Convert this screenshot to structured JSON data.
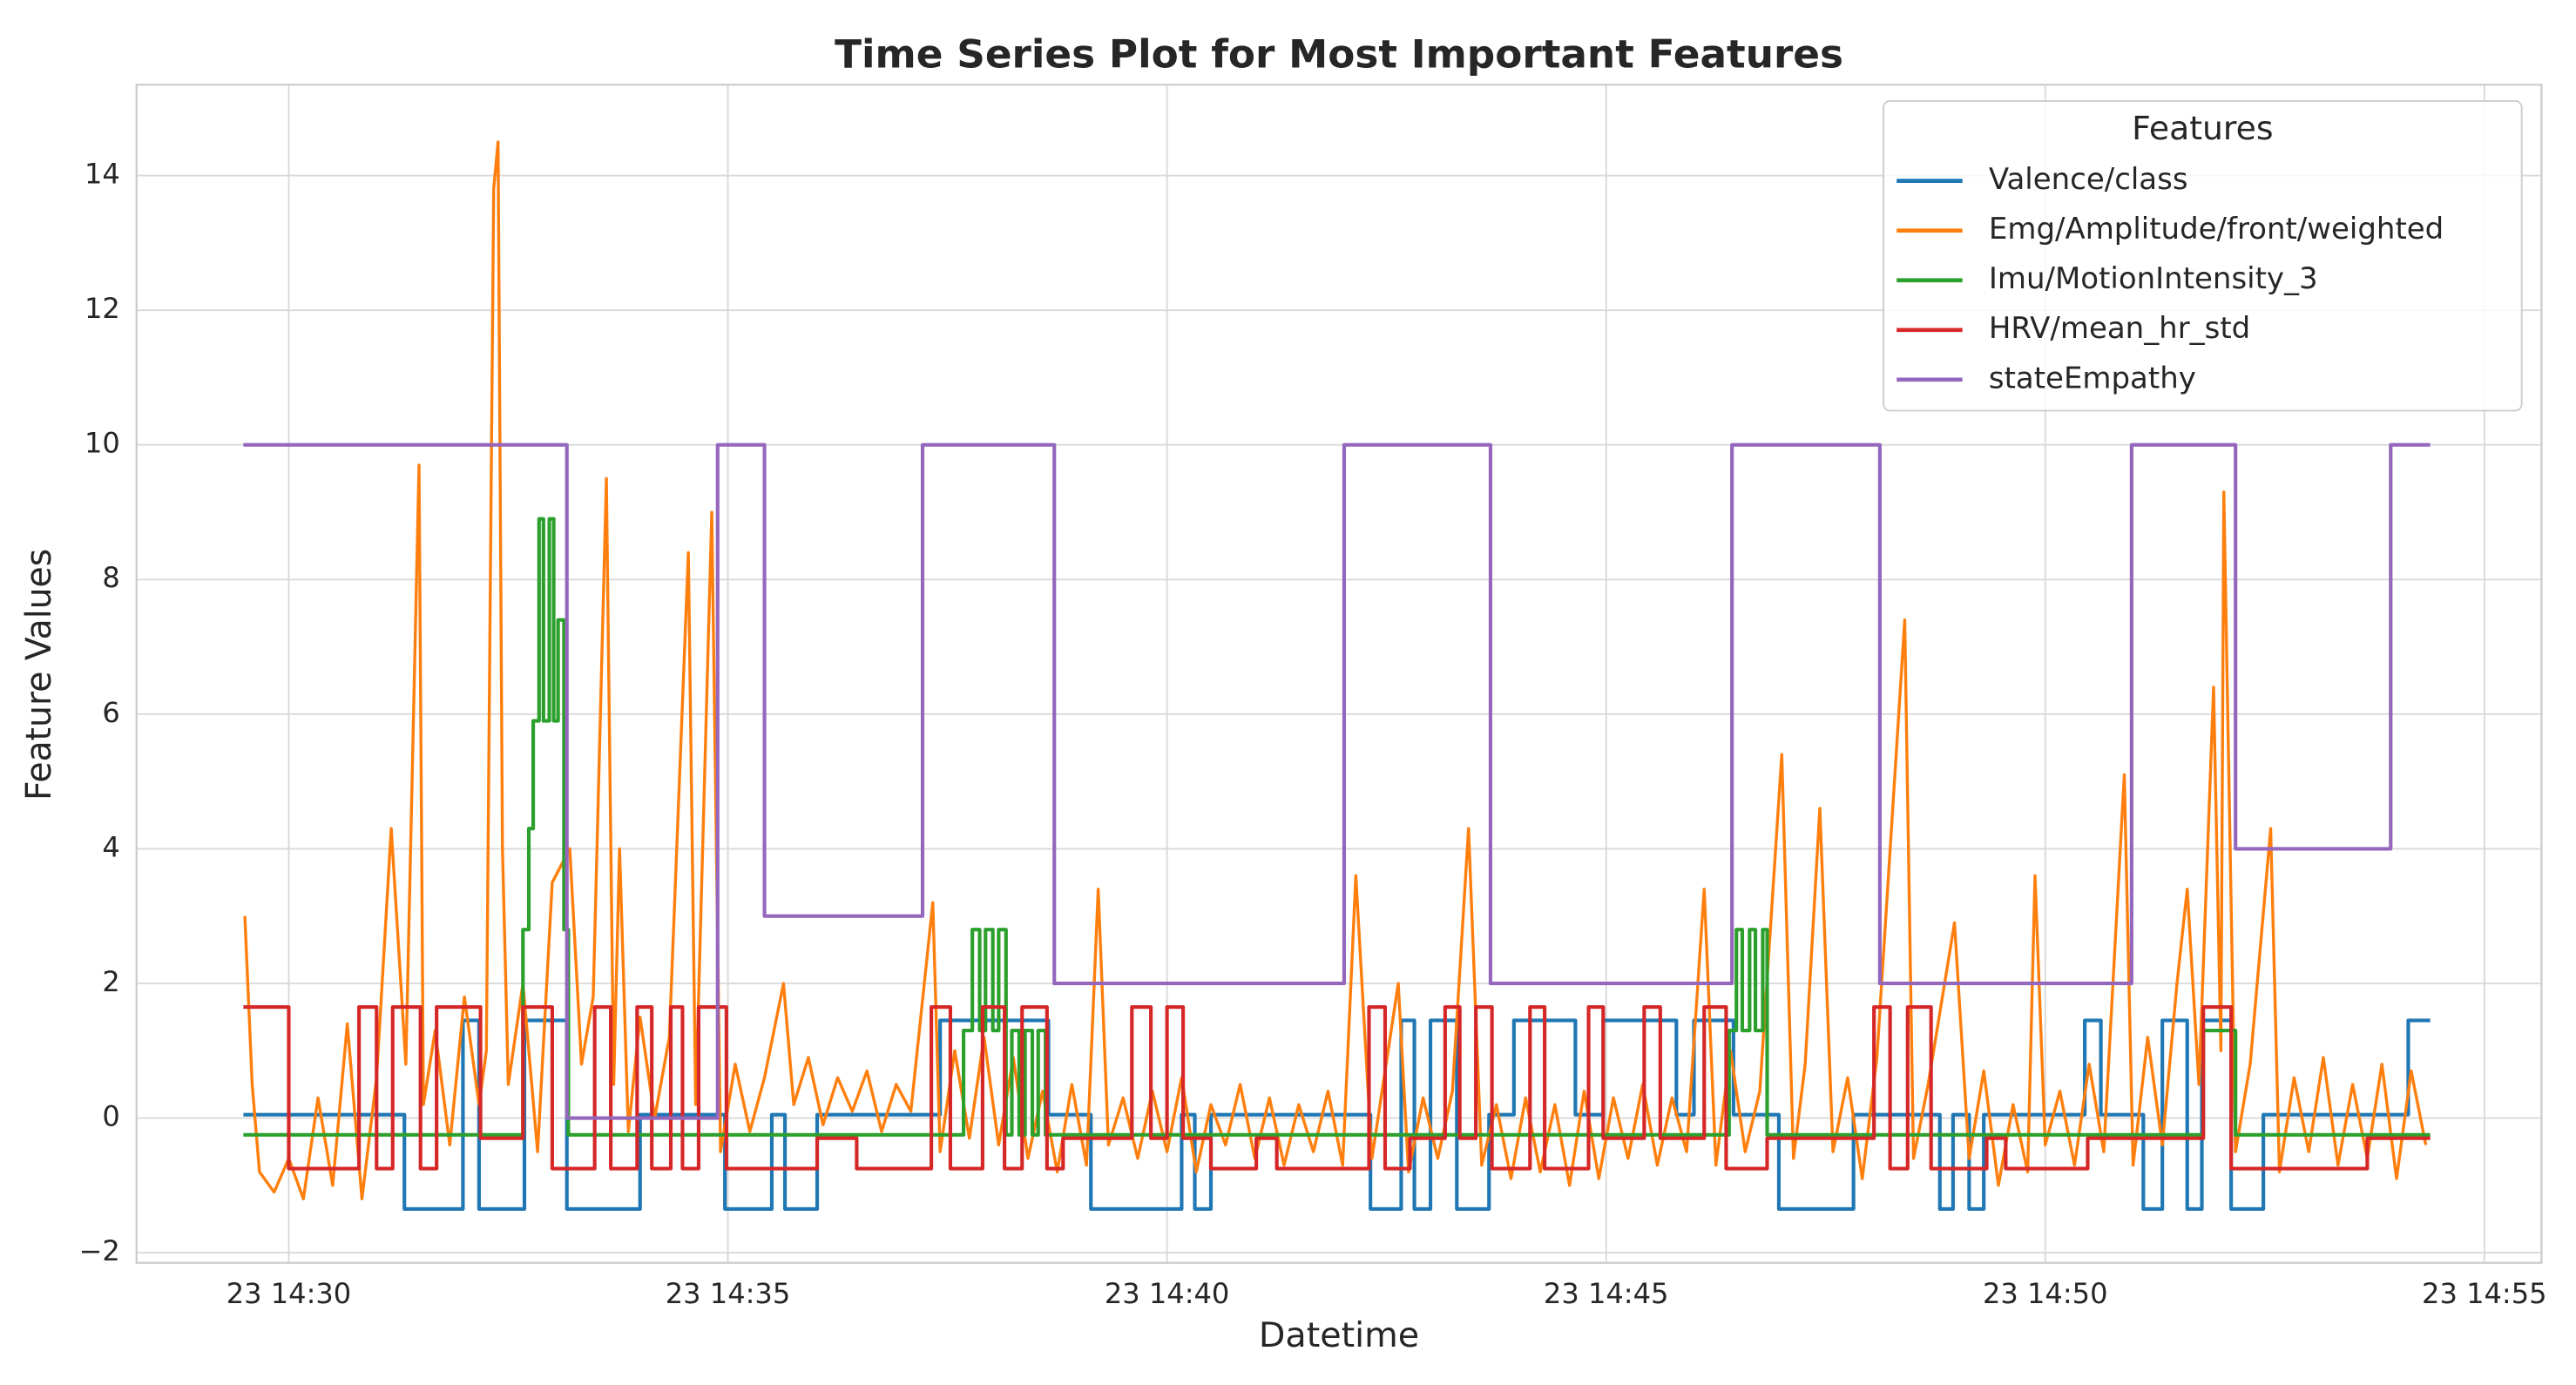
{
  "chart_data": {
    "type": "line",
    "title": "Time Series Plot for Most Important Features",
    "x_label": "Datetime",
    "y_label": "Feature Values",
    "legend_title": "Features",
    "legend": "upper right",
    "grid": true,
    "xlim": [
      "23 14:28:16",
      "23 14:55:39"
    ],
    "ylim": [
      -2.15,
      15.35
    ],
    "xticks": [
      "23 14:30",
      "23 14:35",
      "23 14:40",
      "23 14:45",
      "23 14:50",
      "23 14:55"
    ],
    "yticks": [
      {
        "value": -2,
        "label": "−2"
      },
      0,
      2,
      4,
      6,
      8,
      10,
      12,
      14
    ],
    "series": [
      {
        "name": "Valence/class",
        "color": "#1f77b4",
        "step": true,
        "x": [
          "23 14:29:29",
          "23 14:31:19",
          "23 14:31:59",
          "23 14:32:10",
          "23 14:32:41",
          "23 14:33:10",
          "23 14:34:00",
          "23 14:34:58",
          "23 14:35:30",
          "23 14:35:39",
          "23 14:36:01",
          "23 14:37:25",
          "23 14:38:39",
          "23 14:39:08",
          "23 14:40:10",
          "23 14:40:19",
          "23 14:40:30",
          "23 14:42:19",
          "23 14:42:40",
          "23 14:42:49",
          "23 14:43:00",
          "23 14:43:18",
          "23 14:43:40",
          "23 14:43:57",
          "23 14:44:39",
          "23 14:44:58",
          "23 14:45:48",
          "23 14:46:00",
          "23 14:46:27",
          "23 14:46:58",
          "23 14:47:49",
          "23 14:48:48",
          "23 14:48:57",
          "23 14:49:08",
          "23 14:49:18",
          "23 14:50:27",
          "23 14:50:38",
          "23 14:51:07",
          "23 14:51:20",
          "23 14:51:37",
          "23 14:51:47",
          "23 14:52:07",
          "23 14:52:29",
          "23 14:54:08",
          "23 14:54:23"
        ],
        "values": [
          0.05,
          -1.35,
          1.45,
          -1.35,
          1.45,
          -1.35,
          0.05,
          -1.35,
          0.05,
          -1.35,
          0.05,
          1.45,
          0.05,
          -1.35,
          0.05,
          -1.35,
          0.05,
          -1.35,
          1.45,
          -1.35,
          1.45,
          -1.35,
          0.05,
          1.45,
          0.05,
          1.45,
          0.05,
          1.45,
          0.05,
          -1.35,
          0.05,
          -1.35,
          0.05,
          -1.35,
          0.05,
          1.45,
          0.05,
          -1.35,
          1.45,
          -1.35,
          1.45,
          -1.35,
          0.05,
          1.45,
          1.45
        ]
      },
      {
        "name": "Emg/Amplitude/front/weighted",
        "color": "#ff7f0e",
        "step": false,
        "x": [
          "23 14:29:30",
          "23 14:29:35",
          "23 14:29:40",
          "23 14:29:50",
          "23 14:30:00",
          "23 14:30:10",
          "23 14:30:20",
          "23 14:30:30",
          "23 14:30:40",
          "23 14:30:50",
          "23 14:31:00",
          "23 14:31:10",
          "23 14:31:20",
          "23 14:31:29",
          "23 14:31:32",
          "23 14:31:40",
          "23 14:31:50",
          "23 14:32:00",
          "23 14:32:10",
          "23 14:32:15",
          "23 14:32:20",
          "23 14:32:23",
          "23 14:32:26",
          "23 14:32:30",
          "23 14:32:40",
          "23 14:32:50",
          "23 14:33:00",
          "23 14:33:12",
          "23 14:33:20",
          "23 14:33:28",
          "23 14:33:37",
          "23 14:33:42",
          "23 14:33:46",
          "23 14:33:52",
          "23 14:34:00",
          "23 14:34:10",
          "23 14:34:20",
          "23 14:34:33",
          "23 14:34:38",
          "23 14:34:49",
          "23 14:34:55",
          "23 14:35:05",
          "23 14:35:15",
          "23 14:35:25",
          "23 14:35:38",
          "23 14:35:45",
          "23 14:35:55",
          "23 14:36:05",
          "23 14:36:15",
          "23 14:36:25",
          "23 14:36:35",
          "23 14:36:45",
          "23 14:36:55",
          "23 14:37:05",
          "23 14:37:20",
          "23 14:37:25",
          "23 14:37:35",
          "23 14:37:45",
          "23 14:37:55",
          "23 14:38:05",
          "23 14:38:15",
          "23 14:38:25",
          "23 14:38:35",
          "23 14:38:45",
          "23 14:38:55",
          "23 14:39:05",
          "23 14:39:13",
          "23 14:39:20",
          "23 14:39:30",
          "23 14:39:40",
          "23 14:39:50",
          "23 14:40:00",
          "23 14:40:10",
          "23 14:40:20",
          "23 14:40:30",
          "23 14:40:40",
          "23 14:40:50",
          "23 14:41:00",
          "23 14:41:10",
          "23 14:41:20",
          "23 14:41:30",
          "23 14:41:40",
          "23 14:41:50",
          "23 14:42:00",
          "23 14:42:09",
          "23 14:42:20",
          "23 14:42:38",
          "23 14:42:45",
          "23 14:42:55",
          "23 14:43:05",
          "23 14:43:15",
          "23 14:43:26",
          "23 14:43:35",
          "23 14:43:45",
          "23 14:43:55",
          "23 14:44:05",
          "23 14:44:15",
          "23 14:44:25",
          "23 14:44:35",
          "23 14:44:45",
          "23 14:44:55",
          "23 14:45:05",
          "23 14:45:15",
          "23 14:45:25",
          "23 14:45:35",
          "23 14:45:45",
          "23 14:45:55",
          "23 14:46:07",
          "23 14:46:15",
          "23 14:46:25",
          "23 14:46:35",
          "23 14:46:45",
          "23 14:47:00",
          "23 14:47:08",
          "23 14:47:16",
          "23 14:47:26",
          "23 14:47:35",
          "23 14:47:45",
          "23 14:47:55",
          "23 14:48:05",
          "23 14:48:24",
          "23 14:48:30",
          "23 14:48:40",
          "23 14:48:58",
          "23 14:49:08",
          "23 14:49:18",
          "23 14:49:28",
          "23 14:49:38",
          "23 14:49:48",
          "23 14:49:53",
          "23 14:50:00",
          "23 14:50:10",
          "23 14:50:20",
          "23 14:50:30",
          "23 14:50:40",
          "23 14:50:54",
          "23 14:51:00",
          "23 14:51:10",
          "23 14:51:20",
          "23 14:51:30",
          "23 14:51:37",
          "23 14:51:45",
          "23 14:51:55",
          "23 14:52:00",
          "23 14:52:02",
          "23 14:52:10",
          "23 14:52:20",
          "23 14:52:34",
          "23 14:52:40",
          "23 14:52:50",
          "23 14:53:00",
          "23 14:53:10",
          "23 14:53:20",
          "23 14:53:30",
          "23 14:53:40",
          "23 14:53:50",
          "23 14:54:00",
          "23 14:54:10",
          "23 14:54:20"
        ],
        "values": [
          3.0,
          0.5,
          -0.8,
          -1.1,
          -0.6,
          -1.2,
          0.3,
          -1.0,
          1.4,
          -1.2,
          0.6,
          4.3,
          0.8,
          9.7,
          0.2,
          1.3,
          -0.4,
          1.8,
          0.2,
          1.0,
          13.8,
          14.5,
          4.0,
          0.5,
          2.0,
          -0.5,
          3.5,
          4.0,
          0.8,
          1.8,
          9.5,
          0.5,
          4.0,
          -0.2,
          1.5,
          0.0,
          1.2,
          8.4,
          0.2,
          9.0,
          -0.5,
          0.8,
          -0.2,
          0.6,
          2.0,
          0.2,
          0.9,
          -0.1,
          0.6,
          0.1,
          0.7,
          -0.2,
          0.5,
          0.1,
          3.2,
          -0.5,
          1.0,
          -0.3,
          1.2,
          -0.4,
          0.9,
          -0.6,
          0.4,
          -0.8,
          0.5,
          -0.7,
          3.4,
          -0.4,
          0.3,
          -0.6,
          0.4,
          -0.5,
          0.6,
          -0.8,
          0.2,
          -0.4,
          0.5,
          -0.6,
          0.3,
          -0.7,
          0.2,
          -0.5,
          0.4,
          -0.7,
          3.6,
          -0.6,
          2.0,
          -0.8,
          0.3,
          -0.6,
          0.4,
          4.3,
          -0.7,
          0.2,
          -0.9,
          0.3,
          -0.8,
          0.2,
          -1.0,
          0.4,
          -0.9,
          0.3,
          -0.6,
          0.5,
          -0.7,
          0.3,
          -0.5,
          3.4,
          -0.7,
          1.0,
          -0.5,
          0.4,
          5.4,
          -0.6,
          0.8,
          4.6,
          -0.5,
          0.6,
          -0.9,
          0.9,
          7.4,
          -0.6,
          0.5,
          2.9,
          -0.6,
          0.7,
          -1.0,
          0.2,
          -0.8,
          3.6,
          -0.4,
          0.4,
          -0.7,
          0.8,
          -0.5,
          5.1,
          -0.7,
          1.2,
          -0.4,
          2.0,
          3.4,
          0.5,
          6.4,
          1.0,
          9.3,
          -0.5,
          0.8,
          4.3,
          -0.8,
          0.6,
          -0.5,
          0.9,
          -0.7,
          0.5,
          -0.6,
          0.8,
          -0.9,
          0.7,
          -0.4
        ]
      },
      {
        "name": "Imu/MotionIntensity_3",
        "color": "#2ca02c",
        "step": true,
        "x": [
          "23 14:29:29",
          "23 14:32:40",
          "23 14:32:44",
          "23 14:32:47",
          "23 14:32:51",
          "23 14:32:54",
          "23 14:32:58",
          "23 14:33:01",
          "23 14:33:04",
          "23 14:33:08",
          "23 14:33:11",
          "23 14:37:41",
          "23 14:37:47",
          "23 14:37:52",
          "23 14:37:56",
          "23 14:38:01",
          "23 14:38:05",
          "23 14:38:10",
          "23 14:38:14",
          "23 14:38:19",
          "23 14:38:23",
          "23 14:38:28",
          "23 14:38:32",
          "23 14:38:37",
          "23 14:46:24",
          "23 14:46:29",
          "23 14:46:33",
          "23 14:46:38",
          "23 14:46:42",
          "23 14:46:47",
          "23 14:46:50",
          "23 14:51:48",
          "23 14:52:10",
          "23 14:54:23"
        ],
        "values": [
          -0.25,
          2.8,
          4.3,
          5.9,
          8.9,
          5.9,
          8.9,
          5.9,
          7.4,
          2.8,
          -0.25,
          1.3,
          2.8,
          1.3,
          2.8,
          1.3,
          2.8,
          -0.25,
          1.3,
          -0.25,
          1.3,
          -0.25,
          1.3,
          -0.25,
          1.3,
          2.8,
          1.3,
          2.8,
          1.3,
          2.8,
          -0.25,
          1.3,
          -0.25,
          -0.25
        ]
      },
      {
        "name": "HRV/mean_hr_std",
        "color": "#d62728",
        "step": true,
        "x": [
          "23 14:29:29",
          "23 14:30:00",
          "23 14:30:48",
          "23 14:31:00",
          "23 14:31:11",
          "23 14:31:30",
          "23 14:31:41",
          "23 14:32:11",
          "23 14:32:40",
          "23 14:33:00",
          "23 14:33:29",
          "23 14:33:40",
          "23 14:33:58",
          "23 14:34:08",
          "23 14:34:21",
          "23 14:34:29",
          "23 14:34:40",
          "23 14:34:59",
          "23 14:36:01",
          "23 14:36:28",
          "23 14:37:19",
          "23 14:37:32",
          "23 14:37:54",
          "23 14:38:09",
          "23 14:38:21",
          "23 14:38:38",
          "23 14:38:49",
          "23 14:39:36",
          "23 14:39:49",
          "23 14:40:00",
          "23 14:40:11",
          "23 14:40:30",
          "23 14:41:01",
          "23 14:41:15",
          "23 14:42:18",
          "23 14:42:29",
          "23 14:42:46",
          "23 14:43:10",
          "23 14:43:20",
          "23 14:43:31",
          "23 14:43:42",
          "23 14:44:08",
          "23 14:44:18",
          "23 14:44:48",
          "23 14:44:58",
          "23 14:45:26",
          "23 14:45:37",
          "23 14:46:07",
          "23 14:46:22",
          "23 14:46:50",
          "23 14:48:03",
          "23 14:48:14",
          "23 14:48:26",
          "23 14:48:42",
          "23 14:49:20",
          "23 14:49:33",
          "23 14:50:29",
          "23 14:51:48",
          "23 14:52:07",
          "23 14:53:40",
          "23 14:54:23"
        ],
        "values": [
          1.65,
          -0.75,
          1.65,
          -0.75,
          1.65,
          -0.75,
          1.65,
          -0.3,
          1.65,
          -0.75,
          1.65,
          -0.75,
          1.65,
          -0.75,
          1.65,
          -0.75,
          1.65,
          -0.75,
          -0.3,
          -0.75,
          1.65,
          -0.75,
          1.65,
          -0.75,
          1.65,
          -0.75,
          -0.3,
          1.65,
          -0.3,
          1.65,
          -0.3,
          -0.75,
          -0.3,
          -0.75,
          1.65,
          -0.75,
          -0.3,
          1.65,
          -0.3,
          1.65,
          -0.75,
          1.65,
          -0.75,
          1.65,
          -0.3,
          1.65,
          -0.3,
          1.65,
          -0.75,
          -0.3,
          1.65,
          -0.75,
          1.65,
          -0.75,
          -0.3,
          -0.75,
          -0.3,
          1.65,
          -0.75,
          -0.3,
          -0.3
        ]
      },
      {
        "name": "stateEmpathy",
        "color": "#9467bd",
        "step": true,
        "x": [
          "23 14:29:29",
          "23 14:33:10",
          "23 14:34:53",
          "23 14:35:25",
          "23 14:37:13",
          "23 14:38:43",
          "23 14:42:01",
          "23 14:43:41",
          "23 14:46:26",
          "23 14:48:07",
          "23 14:50:59",
          "23 14:52:10",
          "23 14:53:56",
          "23 14:54:23"
        ],
        "values": [
          10,
          0,
          10,
          3,
          10,
          2,
          10,
          2,
          10,
          2,
          10,
          4,
          10,
          10
        ]
      }
    ]
  }
}
